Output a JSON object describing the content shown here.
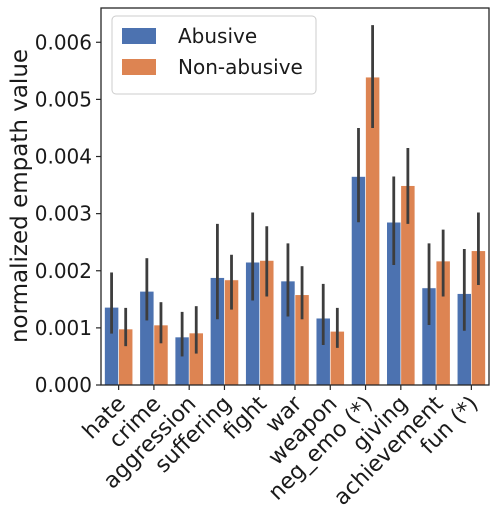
{
  "chart_data": {
    "type": "bar",
    "title": "",
    "xlabel": "",
    "ylabel": "normalized empath value",
    "ylim": [
      0,
      0.0066
    ],
    "yticks": [
      0.0,
      0.001,
      0.002,
      0.003,
      0.004,
      0.005,
      0.006
    ],
    "ytick_labels": [
      "0.000",
      "0.001",
      "0.002",
      "0.003",
      "0.004",
      "0.005",
      "0.006"
    ],
    "categories": [
      "hate",
      "crime",
      "aggression",
      "suffering",
      "fight",
      "war",
      "weapon",
      "neg_emo (*)",
      "giving",
      "achievement",
      "fun (*)"
    ],
    "legend_position": "top-left",
    "grid": false,
    "series": [
      {
        "name": "Abusive",
        "color": "#4c72b0",
        "values": [
          0.00136,
          0.00164,
          0.00084,
          0.00188,
          0.00215,
          0.00182,
          0.00117,
          0.00365,
          0.00285,
          0.0017,
          0.0016
        ],
        "err_low": [
          0.0009,
          0.00113,
          0.0005,
          0.00115,
          0.00148,
          0.0012,
          0.0007,
          0.00285,
          0.0021,
          0.00105,
          0.00095
        ],
        "err_high": [
          0.00197,
          0.00222,
          0.00128,
          0.00282,
          0.00302,
          0.00248,
          0.00177,
          0.0045,
          0.00365,
          0.00248,
          0.00238
        ]
      },
      {
        "name": "Non-abusive",
        "color": "#dd8452",
        "values": [
          0.00098,
          0.00105,
          0.00091,
          0.00184,
          0.00218,
          0.00158,
          0.00094,
          0.00539,
          0.00349,
          0.00217,
          0.00235
        ],
        "err_low": [
          0.00068,
          0.00073,
          0.00055,
          0.00132,
          0.00155,
          0.00115,
          0.00065,
          0.0045,
          0.00282,
          0.00155,
          0.00175
        ],
        "err_high": [
          0.00135,
          0.00145,
          0.00138,
          0.00228,
          0.00278,
          0.00208,
          0.00135,
          0.0063,
          0.00415,
          0.00272,
          0.00302
        ]
      }
    ]
  }
}
